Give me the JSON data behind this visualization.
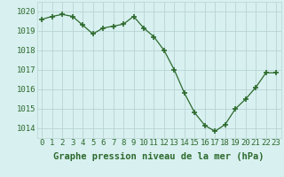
{
  "hours": [
    0,
    1,
    2,
    3,
    4,
    5,
    6,
    7,
    8,
    9,
    10,
    11,
    12,
    13,
    14,
    15,
    16,
    17,
    18,
    19,
    20,
    21,
    22,
    23
  ],
  "pressure": [
    1019.6,
    1019.75,
    1019.85,
    1019.75,
    1019.3,
    1018.85,
    1019.15,
    1019.25,
    1019.35,
    1019.75,
    1019.15,
    1018.7,
    1018.0,
    1017.0,
    1015.8,
    1014.8,
    1014.15,
    1013.85,
    1014.2,
    1015.0,
    1015.5,
    1016.1,
    1016.85,
    1016.85
  ],
  "line_color": "#2d6a2d",
  "marker": "+",
  "marker_size": 5,
  "bg_color": "#d8f0f0",
  "grid_color": "#b8d4d4",
  "xlabel": "Graphe pression niveau de la mer (hPa)",
  "xlabel_color": "#2d6a2d",
  "ylabel_ticks": [
    1014,
    1015,
    1016,
    1017,
    1018,
    1019,
    1020
  ],
  "xlim": [
    -0.5,
    23.5
  ],
  "ylim": [
    1013.5,
    1020.5
  ],
  "tick_label_color": "#2d6a2d",
  "xlabel_fontsize": 7.5,
  "tick_fontsize": 6.5
}
